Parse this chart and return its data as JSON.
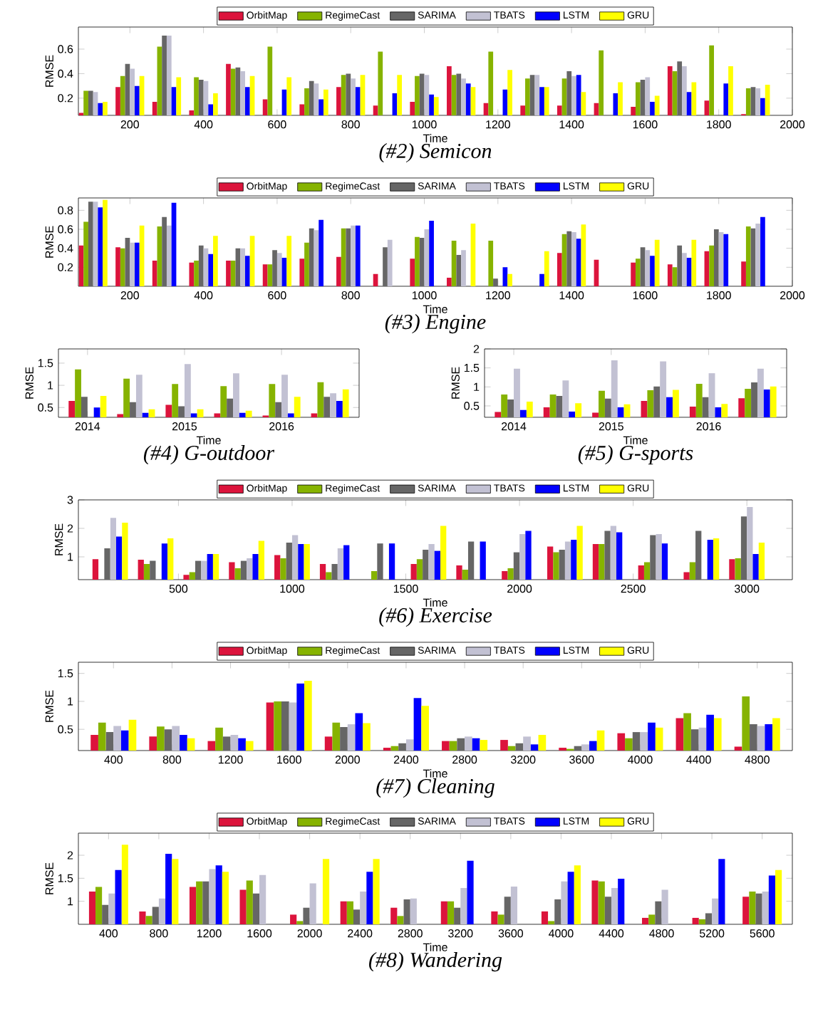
{
  "chart_data": [
    {
      "type": "bar",
      "title": "(#2) Semicon",
      "xlabel": "Time",
      "ylabel": "RMSE",
      "legend": "top",
      "x": [
        100,
        200,
        300,
        400,
        500,
        600,
        700,
        800,
        900,
        1000,
        1100,
        1200,
        1300,
        1400,
        1500,
        1600,
        1700,
        1800,
        1900
      ],
      "xlim": [
        60,
        2000
      ],
      "xticks": [
        200,
        400,
        600,
        800,
        1000,
        1200,
        1400,
        1600,
        1800,
        2000
      ],
      "ylim": [
        0.06,
        0.78
      ],
      "yticks": [
        0.2,
        0.4,
        0.6
      ],
      "series": [
        {
          "name": "OrbitMap",
          "color": "#dc143c",
          "values": [
            0.08,
            0.29,
            0.17,
            0.1,
            0.48,
            0.19,
            0.15,
            0.29,
            0.14,
            0.17,
            0.46,
            0.16,
            0.14,
            0.14,
            0.16,
            0.13,
            0.46,
            0.18,
            0.07
          ]
        },
        {
          "name": "RegimeCast",
          "color": "#86b300",
          "values": [
            0.26,
            0.38,
            0.62,
            0.37,
            0.44,
            0.62,
            0.28,
            0.39,
            0.58,
            0.38,
            0.39,
            0.58,
            0.36,
            0.36,
            0.59,
            0.33,
            0.42,
            0.63,
            0.28
          ]
        },
        {
          "name": "SARIMA",
          "color": "#666666",
          "values": [
            0.26,
            0.48,
            0.71,
            0.35,
            0.45,
            null,
            0.34,
            0.4,
            null,
            0.4,
            0.4,
            null,
            0.39,
            0.42,
            null,
            0.35,
            0.5,
            null,
            0.29
          ]
        },
        {
          "name": "TBATS",
          "color": "#c2c1d3",
          "values": [
            0.25,
            0.44,
            0.71,
            0.34,
            0.42,
            null,
            0.32,
            0.36,
            null,
            0.39,
            0.36,
            null,
            0.39,
            0.38,
            null,
            0.37,
            0.46,
            null,
            0.28
          ]
        },
        {
          "name": "LSTM",
          "color": "#0000ff",
          "values": [
            0.16,
            0.3,
            0.29,
            0.15,
            0.29,
            0.27,
            0.19,
            0.29,
            0.24,
            0.23,
            0.32,
            0.27,
            0.29,
            0.39,
            0.24,
            0.17,
            0.25,
            0.32,
            0.2
          ]
        },
        {
          "name": "GRU",
          "color": "#ffff00",
          "values": [
            0.17,
            0.38,
            0.37,
            0.24,
            0.38,
            0.37,
            0.27,
            0.39,
            0.39,
            0.21,
            0.29,
            0.43,
            0.29,
            0.25,
            0.33,
            0.22,
            0.33,
            0.46,
            0.31
          ]
        }
      ]
    },
    {
      "type": "bar",
      "title": "(#3) Engine",
      "xlabel": "Time",
      "ylabel": "RMSE",
      "legend": "top",
      "x": [
        100,
        200,
        300,
        400,
        500,
        600,
        700,
        800,
        900,
        1000,
        1100,
        1200,
        1300,
        1400,
        1500,
        1600,
        1700,
        1800,
        1900
      ],
      "xlim": [
        60,
        2000
      ],
      "xticks": [
        200,
        400,
        600,
        800,
        1000,
        1200,
        1400,
        1600,
        1800,
        2000
      ],
      "ylim": [
        0,
        0.93
      ],
      "yticks": [
        0.2,
        0.4,
        0.6,
        0.8
      ],
      "series": [
        {
          "name": "OrbitMap",
          "color": "#dc143c",
          "values": [
            0.43,
            0.41,
            0.27,
            0.25,
            0.27,
            0.23,
            0.29,
            0.31,
            0.13,
            0.29,
            0.09,
            null,
            null,
            0.35,
            0.28,
            0.25,
            0.23,
            0.37,
            0.26
          ]
        },
        {
          "name": "RegimeCast",
          "color": "#86b300",
          "values": [
            0.68,
            0.4,
            0.63,
            0.27,
            0.27,
            0.23,
            0.46,
            0.61,
            null,
            0.52,
            0.48,
            0.48,
            null,
            0.55,
            null,
            0.29,
            0.2,
            0.43,
            0.63
          ]
        },
        {
          "name": "SARIMA",
          "color": "#666666",
          "values": [
            0.89,
            0.51,
            0.73,
            0.43,
            0.4,
            0.38,
            0.61,
            0.61,
            0.41,
            0.51,
            0.33,
            0.08,
            null,
            0.58,
            null,
            0.41,
            0.43,
            0.6,
            0.61
          ]
        },
        {
          "name": "TBATS",
          "color": "#c2c1d3",
          "values": [
            0.89,
            0.46,
            0.64,
            0.4,
            0.4,
            0.35,
            0.59,
            0.64,
            0.49,
            0.6,
            0.38,
            null,
            null,
            0.57,
            null,
            0.38,
            0.35,
            0.57,
            0.66
          ]
        },
        {
          "name": "LSTM",
          "color": "#0000ff",
          "values": [
            0.83,
            0.46,
            0.88,
            0.34,
            0.32,
            0.3,
            0.7,
            0.64,
            null,
            0.69,
            null,
            0.2,
            0.13,
            0.5,
            null,
            0.32,
            0.3,
            0.55,
            0.73
          ]
        },
        {
          "name": "GRU",
          "color": "#ffff00",
          "values": [
            0.91,
            0.64,
            null,
            0.53,
            0.53,
            0.53,
            null,
            null,
            null,
            null,
            0.66,
            0.13,
            0.37,
            0.65,
            null,
            0.49,
            0.49,
            null,
            null
          ]
        }
      ]
    },
    {
      "type": "bar",
      "title": "(#4) G-outdoor",
      "xlabel": "Time",
      "ylabel": "RMSE",
      "categories": [
        "2014",
        null,
        "2015",
        null,
        "2016",
        null
      ],
      "ylim": [
        0.28,
        1.82
      ],
      "yticks": [
        0.5,
        1,
        1.5
      ],
      "series": [
        {
          "color": "#dc143c",
          "values": [
            0.65,
            0.35,
            0.56,
            0.37,
            0.32,
            0.37
          ]
        },
        {
          "color": "#86b300",
          "values": [
            1.36,
            1.15,
            1.03,
            0.98,
            1.03,
            1.07
          ]
        },
        {
          "color": "#666666",
          "values": [
            0.74,
            0.62,
            0.53,
            0.7,
            0.62,
            0.74
          ]
        },
        {
          "color": "#c2c1d3",
          "values": [
            null,
            1.24,
            1.48,
            1.27,
            1.24,
            0.82
          ]
        },
        {
          "color": "#0000ff",
          "values": [
            0.5,
            0.38,
            0.37,
            0.38,
            0.37,
            0.65
          ]
        },
        {
          "color": "#ffff00",
          "values": [
            0.76,
            0.46,
            0.46,
            0.43,
            0.74,
            0.91
          ]
        }
      ]
    },
    {
      "type": "bar",
      "title": "(#5) G-sports",
      "xlabel": "Time",
      "ylabel": "RMSE",
      "categories": [
        "2014",
        null,
        "2015",
        null,
        "2016",
        null
      ],
      "ylim": [
        0.2,
        2
      ],
      "yticks": [
        0.5,
        1,
        1.5,
        2
      ],
      "series": [
        {
          "color": "#dc143c",
          "values": [
            0.34,
            0.46,
            0.32,
            0.63,
            0.48,
            0.7
          ]
        },
        {
          "color": "#86b300",
          "values": [
            0.8,
            0.8,
            0.9,
            0.91,
            1.08,
            0.95
          ]
        },
        {
          "color": "#666666",
          "values": [
            0.67,
            0.76,
            0.69,
            1.01,
            0.73,
            1.12
          ]
        },
        {
          "color": "#c2c1d3",
          "values": [
            1.48,
            1.17,
            1.7,
            1.67,
            1.36,
            1.48
          ]
        },
        {
          "color": "#0000ff",
          "values": [
            0.39,
            0.35,
            0.46,
            0.73,
            0.46,
            0.93
          ]
        },
        {
          "color": "#ffff00",
          "values": [
            0.61,
            0.57,
            0.54,
            0.92,
            0.55,
            1.01
          ]
        }
      ]
    },
    {
      "type": "bar",
      "title": "(#6) Exercise",
      "xlabel": "Time",
      "ylabel": "RMSE",
      "legend": "top",
      "x": [
        200,
        400,
        600,
        800,
        1000,
        1200,
        1400,
        1600,
        1800,
        2000,
        2200,
        2400,
        2600,
        2800,
        3000
      ],
      "xlim": [
        60,
        3200
      ],
      "xticks": [
        500,
        1000,
        1500,
        2000,
        2500,
        3000
      ],
      "ylim": [
        0.2,
        3
      ],
      "yticks": [
        1,
        2,
        3
      ],
      "series": [
        {
          "name": "OrbitMap",
          "color": "#dc143c",
          "values": [
            0.92,
            0.9,
            0.37,
            0.81,
            1.06,
            0.75,
            null,
            0.75,
            0.7,
            0.5,
            1.36,
            1.45,
            0.7,
            0.46,
            0.92
          ]
        },
        {
          "name": "RegimeCast",
          "color": "#86b300",
          "values": [
            null,
            0.75,
            0.46,
            0.6,
            0.95,
            0.46,
            0.5,
            0.92,
            0.55,
            0.6,
            1.16,
            1.45,
            0.81,
            0.81,
            0.95
          ]
        },
        {
          "name": "SARIMA",
          "color": "#666666",
          "values": [
            1.3,
            0.86,
            0.86,
            0.86,
            1.5,
            0.75,
            1.47,
            1.25,
            1.54,
            1.16,
            1.25,
            1.91,
            1.76,
            1.91,
            2.42
          ]
        },
        {
          "name": "TBATS",
          "color": "#c2c1d3",
          "values": [
            2.37,
            null,
            0.86,
            0.95,
            1.76,
            1.3,
            null,
            1.45,
            null,
            1.8,
            1.54,
            2.09,
            1.8,
            null,
            2.75
          ]
        },
        {
          "name": "LSTM",
          "color": "#0000ff",
          "values": [
            1.71,
            1.47,
            1.1,
            1.1,
            1.45,
            1.41,
            1.47,
            1.21,
            1.54,
            1.91,
            1.6,
            1.86,
            1.47,
            1.6,
            1.1
          ]
        },
        {
          "name": "GRU",
          "color": "#ffff00",
          "values": [
            2.2,
            1.65,
            1.1,
            1.56,
            1.45,
            null,
            null,
            2.09,
            null,
            null,
            2.09,
            null,
            null,
            1.65,
            1.5
          ]
        }
      ]
    },
    {
      "type": "bar",
      "title": "(#7) Cleaning",
      "xlabel": "Time",
      "ylabel": "RMSE",
      "legend": "top",
      "categories": [
        "400",
        "800",
        "1200",
        "1600",
        "2000",
        "2400",
        "2800",
        "3200",
        "3600",
        "4000",
        "4400",
        "4800"
      ],
      "ylim": [
        0.12,
        1.7
      ],
      "yticks": [
        0.5,
        1,
        1.5
      ],
      "series": [
        {
          "name": "OrbitMap",
          "color": "#dc143c",
          "values": [
            0.4,
            0.37,
            0.29,
            0.98,
            0.37,
            0.17,
            0.29,
            0.31,
            0.17,
            0.43,
            0.7,
            0.19
          ]
        },
        {
          "name": "RegimeCast",
          "color": "#86b300",
          "values": [
            0.62,
            0.55,
            0.53,
            1.0,
            0.62,
            0.2,
            0.29,
            0.2,
            0.15,
            0.34,
            0.79,
            1.09
          ]
        },
        {
          "name": "SARIMA",
          "color": "#666666",
          "values": [
            0.45,
            0.5,
            0.37,
            1.0,
            0.54,
            0.25,
            0.34,
            0.25,
            0.2,
            0.45,
            0.5,
            0.59
          ]
        },
        {
          "name": "TBATS",
          "color": "#c2c1d3",
          "values": [
            0.56,
            0.56,
            0.4,
            0.98,
            0.59,
            0.32,
            0.37,
            0.37,
            0.23,
            0.45,
            0.53,
            0.56
          ]
        },
        {
          "name": "LSTM",
          "color": "#0000ff",
          "values": [
            0.48,
            0.4,
            0.34,
            1.32,
            0.79,
            1.06,
            0.34,
            0.23,
            0.29,
            0.62,
            0.76,
            0.59
          ]
        },
        {
          "name": "GRU",
          "color": "#ffff00",
          "values": [
            0.67,
            0.34,
            0.29,
            1.37,
            0.61,
            0.92,
            0.31,
            0.4,
            0.48,
            0.53,
            0.7,
            0.7
          ]
        }
      ]
    },
    {
      "type": "bar",
      "title": "(#8) Wandering",
      "xlabel": "Time",
      "ylabel": "RMSE",
      "legend": "top",
      "categories": [
        "400",
        "800",
        "1200",
        "1600",
        "2000",
        "2400",
        "2800",
        "3200",
        "3600",
        "4000",
        "4400",
        "4800",
        "5200",
        "5600"
      ],
      "ylim": [
        0.5,
        2.48
      ],
      "yticks": [
        1,
        1.5,
        2
      ],
      "series": [
        {
          "name": "OrbitMap",
          "color": "#dc143c",
          "values": [
            1.21,
            0.78,
            1.31,
            1.25,
            0.71,
            1.0,
            0.86,
            1.0,
            0.78,
            0.78,
            1.45,
            0.64,
            0.64,
            1.1
          ]
        },
        {
          "name": "RegimeCast",
          "color": "#86b300",
          "values": [
            1.31,
            0.68,
            1.43,
            1.45,
            0.57,
            1.0,
            0.68,
            1.0,
            0.71,
            0.57,
            1.43,
            0.71,
            0.61,
            1.21
          ]
        },
        {
          "name": "SARIMA",
          "color": "#666666",
          "values": [
            0.92,
            0.88,
            1.43,
            1.17,
            0.86,
            0.82,
            1.04,
            0.86,
            1.1,
            1.04,
            1.1,
            1.0,
            0.74,
            1.17
          ]
        },
        {
          "name": "TBATS",
          "color": "#c2c1d3",
          "values": [
            1.17,
            1.06,
            1.7,
            1.57,
            1.39,
            1.21,
            1.06,
            1.29,
            1.32,
            1.43,
            1.29,
            1.25,
            1.06,
            1.21
          ]
        },
        {
          "name": "LSTM",
          "color": "#0000ff",
          "values": [
            1.68,
            2.03,
            1.78,
            null,
            null,
            1.64,
            null,
            1.88,
            null,
            1.64,
            1.49,
            null,
            1.92,
            1.56
          ]
        },
        {
          "name": "GRU",
          "color": "#ffff00",
          "values": [
            2.23,
            1.92,
            1.64,
            null,
            1.92,
            1.92,
            null,
            null,
            null,
            1.78,
            null,
            null,
            null,
            1.68
          ]
        }
      ]
    }
  ]
}
